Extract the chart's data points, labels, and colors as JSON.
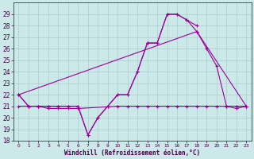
{
  "title": "",
  "xlabel": "Windchill (Refroidissement éolien,°C)",
  "background_color": "#cce8e8",
  "line_color": "#990099",
  "x_hours": [
    0,
    1,
    2,
    3,
    4,
    5,
    6,
    7,
    8,
    9,
    10,
    11,
    12,
    13,
    14,
    15,
    16,
    17,
    18,
    19,
    20,
    21,
    22,
    23
  ],
  "series1_y": [
    22,
    21,
    21,
    21,
    21,
    21,
    21,
    18.5,
    20,
    21,
    22,
    22,
    24,
    26.5,
    26.5,
    29,
    29,
    28.5,
    28,
    null,
    null,
    null,
    null,
    null
  ],
  "series2_y": [
    22,
    21,
    21,
    21,
    21,
    21,
    21,
    18.5,
    20,
    21,
    22,
    22,
    24,
    26.5,
    26.5,
    29,
    29,
    28.5,
    27.5,
    26,
    24.5,
    21,
    20.8,
    21
  ],
  "series3_y": [
    22,
    null,
    null,
    null,
    null,
    null,
    null,
    null,
    null,
    null,
    null,
    null,
    null,
    null,
    null,
    null,
    null,
    null,
    27.5,
    null,
    null,
    null,
    null,
    21
  ],
  "series4_y": [
    21,
    21,
    21,
    20.8,
    20.8,
    20.8,
    20.8,
    null,
    null,
    null,
    null,
    null,
    null,
    null,
    null,
    null,
    null,
    null,
    null,
    null,
    null,
    null,
    null,
    null
  ],
  "series4b_y": [
    null,
    null,
    null,
    null,
    null,
    null,
    null,
    null,
    null,
    null,
    21,
    21,
    21,
    21,
    21,
    21,
    21,
    21,
    21,
    21,
    21,
    21,
    21,
    21
  ],
  "ylim": [
    18,
    30
  ],
  "yticks": [
    18,
    19,
    20,
    21,
    22,
    23,
    24,
    25,
    26,
    27,
    28,
    29
  ],
  "xlim": [
    -0.5,
    23.5
  ],
  "xticks": [
    0,
    1,
    2,
    3,
    4,
    5,
    6,
    7,
    8,
    9,
    10,
    11,
    12,
    13,
    14,
    15,
    16,
    17,
    18,
    19,
    20,
    21,
    22,
    23
  ],
  "grid_color": "#aacece",
  "marker": "+",
  "tick_fontsize": 5.5,
  "xlabel_fontsize": 5.5
}
